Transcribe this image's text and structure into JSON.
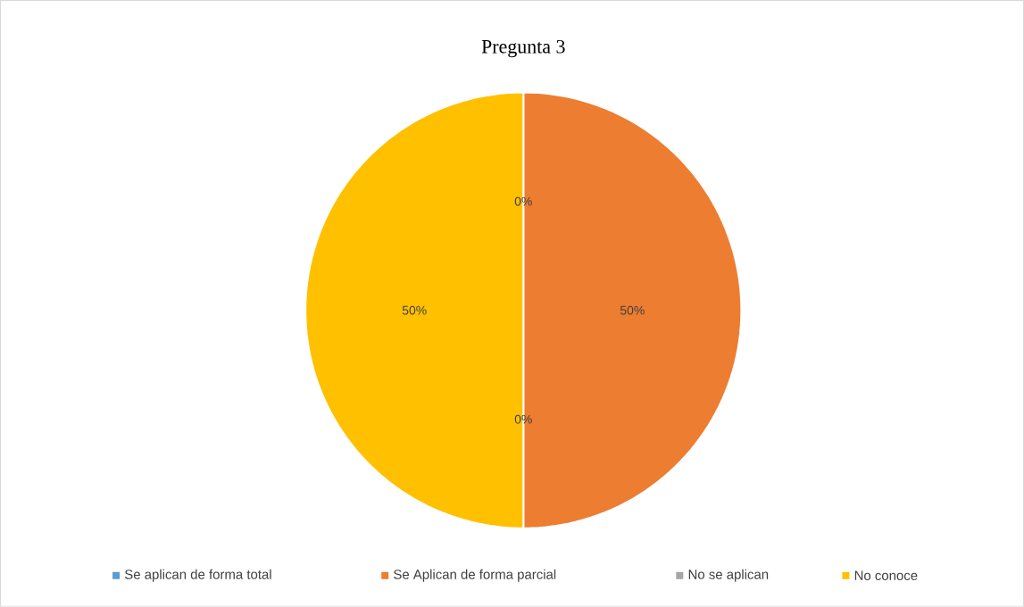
{
  "chart_data": {
    "type": "pie",
    "title": "Pregunta 3",
    "categories": [
      "Se aplican de forma total",
      "Se Aplican de forma parcial",
      "No se aplican",
      "No conoce"
    ],
    "values": [
      0,
      50,
      0,
      50
    ],
    "colors": [
      "#5b9bd5",
      "#ed7d31",
      "#a5a5a5",
      "#ffc000"
    ],
    "value_labels": [
      "0%",
      "50%",
      "0%",
      "50%"
    ],
    "legend": "bottom"
  }
}
